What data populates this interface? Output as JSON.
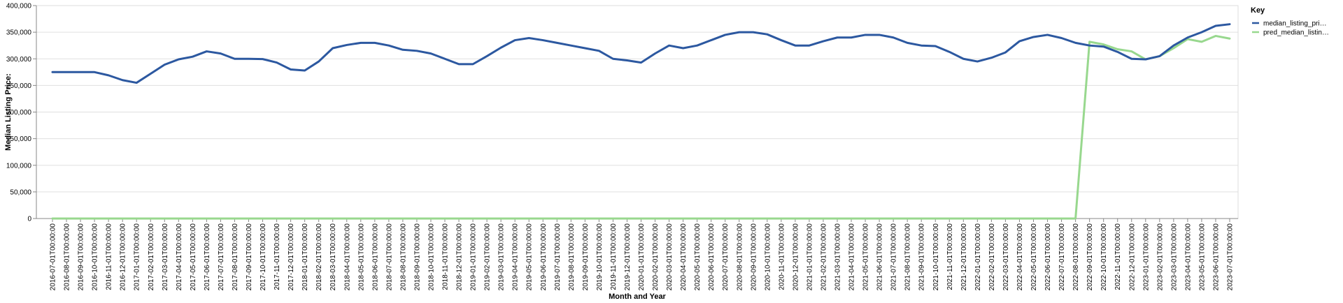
{
  "chart_data": {
    "type": "line",
    "xlabel": "Month and Year",
    "ylabel": "Median Listing Price:",
    "ylim": [
      0,
      400000
    ],
    "y_ticks": [
      "0",
      "50,000",
      "100,000",
      "150,000",
      "200,000",
      "250,000",
      "300,000",
      "350,000",
      "400,000"
    ],
    "y_tick_values": [
      0,
      50000,
      100000,
      150000,
      200000,
      250000,
      300000,
      350000,
      400000
    ],
    "grid": true,
    "legend": {
      "title": "Key",
      "placement": "top-right",
      "entries": [
        "median_listing_pri…",
        "pred_median_listin…"
      ]
    },
    "x": [
      "2016-07-01T00:00:00",
      "2016-08-01T00:00:00",
      "2016-09-01T00:00:00",
      "2016-10-01T00:00:00",
      "2016-11-01T00:00:00",
      "2016-12-01T00:00:00",
      "2017-01-01T00:00:00",
      "2017-02-01T00:00:00",
      "2017-03-01T00:00:00",
      "2017-04-01T00:00:00",
      "2017-05-01T00:00:00",
      "2017-06-01T00:00:00",
      "2017-07-01T00:00:00",
      "2017-08-01T00:00:00",
      "2017-09-01T00:00:00",
      "2017-10-01T00:00:00",
      "2017-11-01T00:00:00",
      "2017-12-01T00:00:00",
      "2018-01-01T00:00:00",
      "2018-02-01T00:00:00",
      "2018-03-01T00:00:00",
      "2018-04-01T00:00:00",
      "2018-05-01T00:00:00",
      "2018-06-01T00:00:00",
      "2018-07-01T00:00:00",
      "2018-08-01T00:00:00",
      "2018-09-01T00:00:00",
      "2018-10-01T00:00:00",
      "2018-11-01T00:00:00",
      "2018-12-01T00:00:00",
      "2019-01-01T00:00:00",
      "2019-02-01T00:00:00",
      "2019-03-01T00:00:00",
      "2019-04-01T00:00:00",
      "2019-05-01T00:00:00",
      "2019-06-01T00:00:00",
      "2019-07-01T00:00:00",
      "2019-08-01T00:00:00",
      "2019-09-01T00:00:00",
      "2019-10-01T00:00:00",
      "2019-11-01T00:00:00",
      "2019-12-01T00:00:00",
      "2020-01-01T00:00:00",
      "2020-02-01T00:00:00",
      "2020-03-01T00:00:00",
      "2020-04-01T00:00:00",
      "2020-05-01T00:00:00",
      "2020-06-01T00:00:00",
      "2020-07-01T00:00:00",
      "2020-08-01T00:00:00",
      "2020-09-01T00:00:00",
      "2020-10-01T00:00:00",
      "2020-11-01T00:00:00",
      "2020-12-01T00:00:00",
      "2021-01-01T00:00:00",
      "2021-02-01T00:00:00",
      "2021-03-01T00:00:00",
      "2021-04-01T00:00:00",
      "2021-05-01T00:00:00",
      "2021-06-01T00:00:00",
      "2021-07-01T00:00:00",
      "2021-08-01T00:00:00",
      "2021-09-01T00:00:00",
      "2021-10-01T00:00:00",
      "2021-11-01T00:00:00",
      "2021-12-01T00:00:00",
      "2022-01-01T00:00:00",
      "2022-02-01T00:00:00",
      "2022-03-01T00:00:00",
      "2022-04-01T00:00:00",
      "2022-05-01T00:00:00",
      "2022-06-01T00:00:00",
      "2022-07-01T00:00:00",
      "2022-08-01T00:00:00",
      "2022-09-01T00:00:00",
      "2022-10-01T00:00:00",
      "2022-11-01T00:00:00",
      "2022-12-01T00:00:00",
      "2023-01-01T00:00:00",
      "2023-02-01T00:00:00",
      "2023-03-01T00:00:00",
      "2023-04-01T00:00:00",
      "2023-05-01T00:00:00",
      "2023-06-01T00:00:00",
      "2023-07-01T00:00:00"
    ],
    "series": [
      {
        "name": "median_listing_pri…",
        "color": "#2c58a0",
        "values": [
          275000,
          275000,
          275000,
          275000,
          269000,
          260000,
          255000,
          272000,
          289000,
          299000,
          304000,
          314000,
          310000,
          300000,
          300000,
          299500,
          293000,
          280000,
          278000,
          295000,
          320000,
          326000,
          330000,
          330000,
          325000,
          317000,
          315000,
          310000,
          300000,
          290000,
          290000,
          305000,
          321000,
          335000,
          339000,
          335000,
          330000,
          325000,
          320000,
          315000,
          300000,
          297000,
          293000,
          310000,
          325000,
          320000,
          325000,
          335000,
          345000,
          350000,
          350000,
          346000,
          335000,
          325000,
          325000,
          333000,
          340000,
          340000,
          345000,
          345000,
          340000,
          330000,
          325000,
          324000,
          313000,
          300000,
          295000,
          302000,
          312000,
          333000,
          341000,
          345000,
          339000,
          330000,
          325000,
          323000,
          313000,
          300000,
          299000,
          305000,
          325000,
          340000,
          350000,
          362000,
          365000
        ]
      },
      {
        "name": "pred_median_listin…",
        "color": "#98d88e",
        "values": [
          0,
          0,
          0,
          0,
          0,
          0,
          0,
          0,
          0,
          0,
          0,
          0,
          0,
          0,
          0,
          0,
          0,
          0,
          0,
          0,
          0,
          0,
          0,
          0,
          0,
          0,
          0,
          0,
          0,
          0,
          0,
          0,
          0,
          0,
          0,
          0,
          0,
          0,
          0,
          0,
          0,
          0,
          0,
          0,
          0,
          0,
          0,
          0,
          0,
          0,
          0,
          0,
          0,
          0,
          0,
          0,
          0,
          0,
          0,
          0,
          0,
          0,
          0,
          0,
          0,
          0,
          0,
          0,
          0,
          0,
          0,
          0,
          0,
          0,
          332000,
          327000,
          318000,
          314000,
          299000,
          305000,
          320000,
          337000,
          332000,
          343000,
          338000
        ]
      }
    ]
  }
}
